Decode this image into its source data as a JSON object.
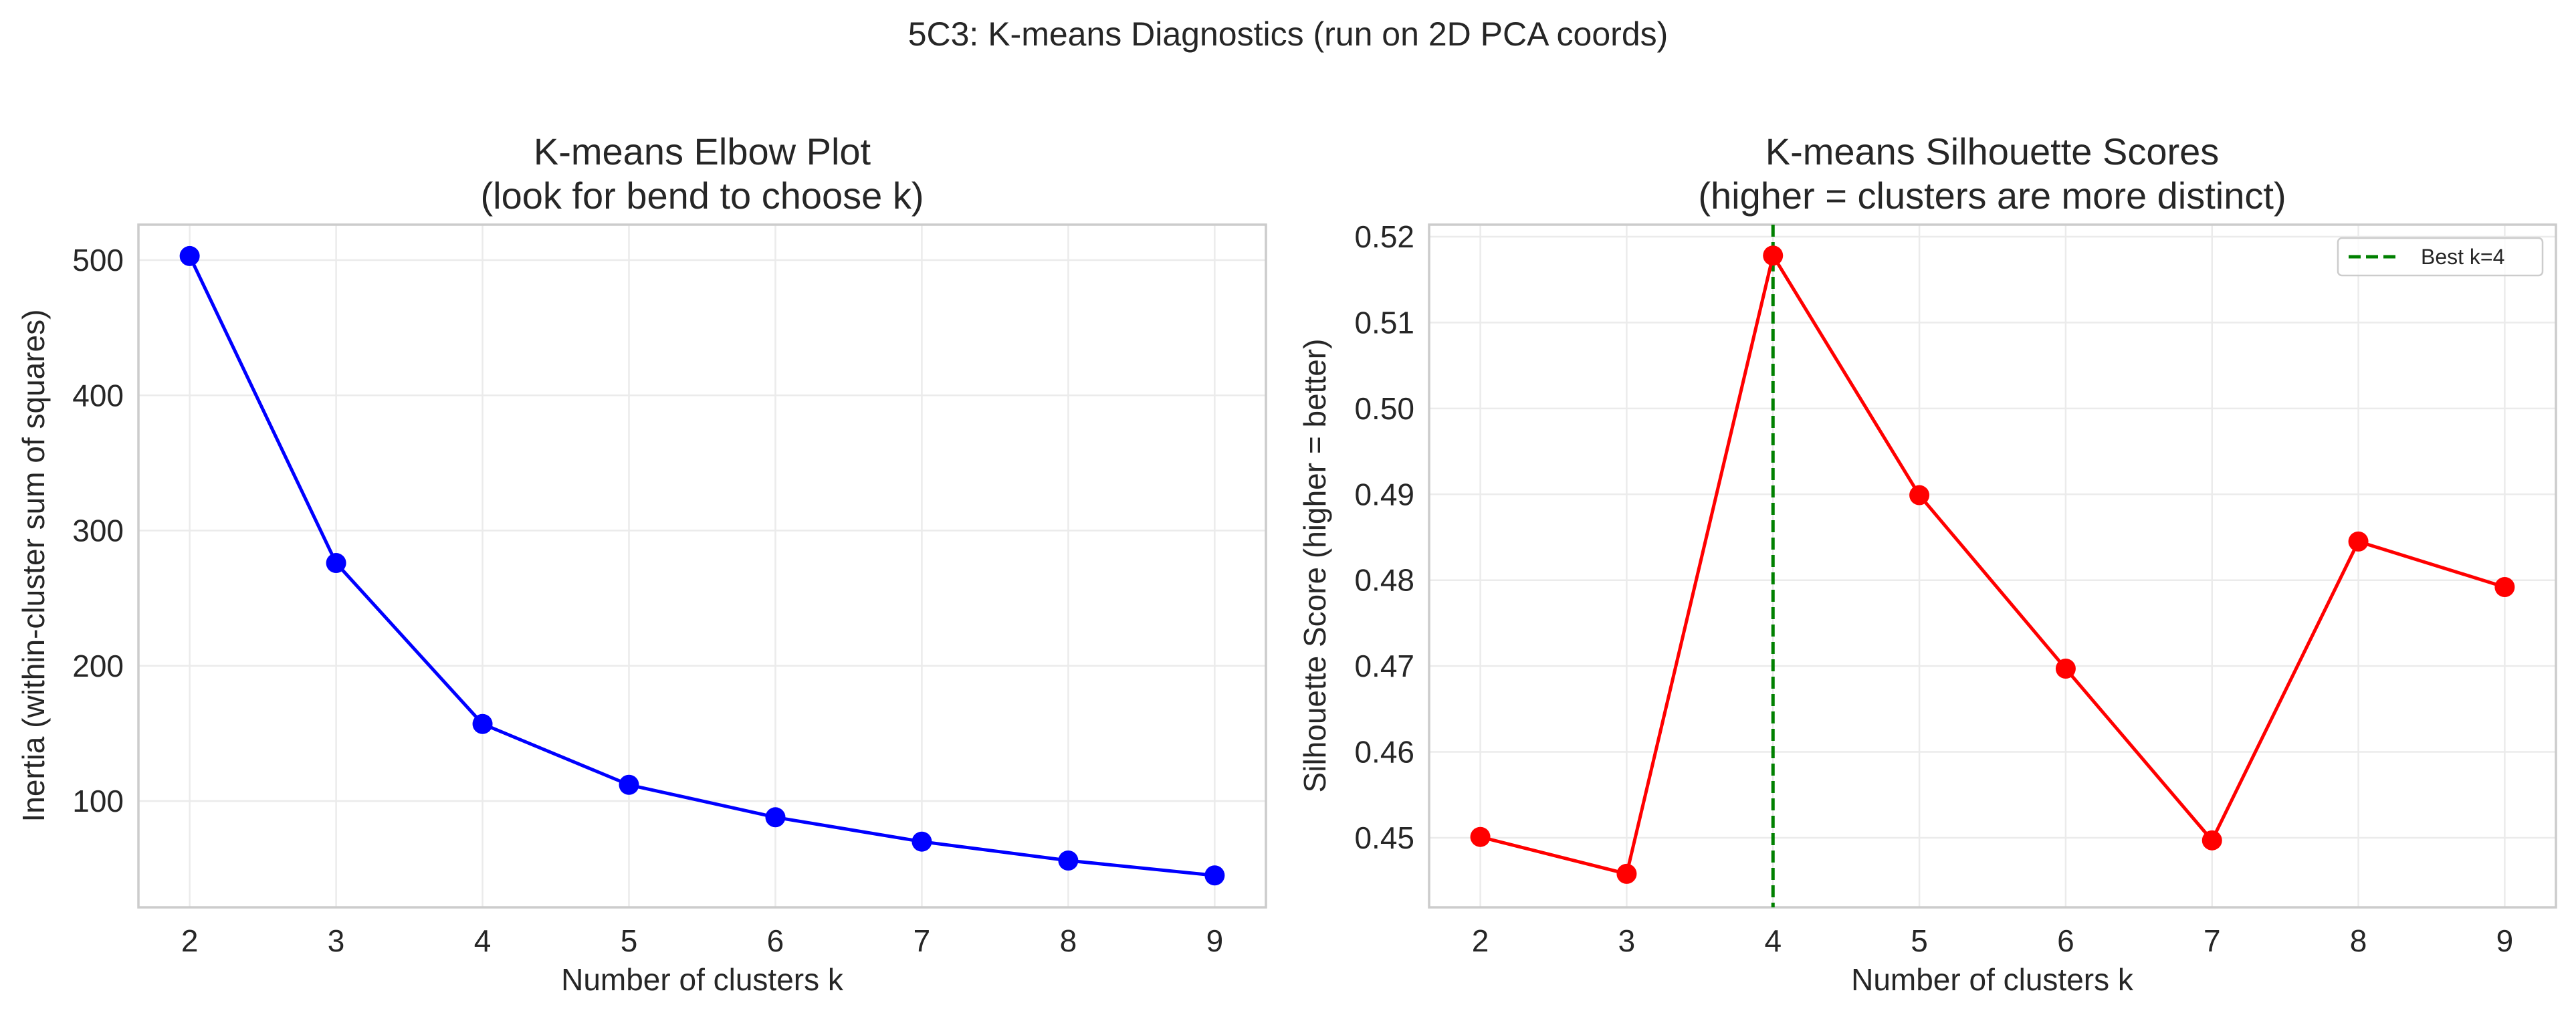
{
  "suptitle": "5C3: K-means Diagnostics (run on 2D PCA coords)",
  "chart_data": [
    {
      "type": "line",
      "title": "K-means Elbow Plot\n(look for bend to choose k)",
      "title_lines": [
        "K-means Elbow Plot",
        "(look for bend to choose k)"
      ],
      "xlabel": "Number of clusters k",
      "ylabel": "Inertia (within-cluster sum of squares)",
      "x": [
        2,
        3,
        4,
        5,
        6,
        7,
        8,
        9
      ],
      "series": [
        {
          "name": "Inertia",
          "color": "#0000ff",
          "marker": "circle",
          "values": [
            503,
            276,
            157,
            112,
            88,
            70,
            56,
            45
          ]
        }
      ],
      "xticks": [
        2,
        3,
        4,
        5,
        6,
        7,
        8,
        9
      ],
      "xtick_labels": [
        "2",
        "3",
        "4",
        "5",
        "6",
        "7",
        "8",
        "9"
      ],
      "yticks": [
        100,
        200,
        300,
        400,
        500
      ],
      "ytick_labels": [
        "100",
        "200",
        "300",
        "400",
        "500"
      ],
      "xlim": [
        1.65,
        9.35
      ],
      "ylim": [
        21.4,
        526.2
      ],
      "grid": true,
      "legend": null
    },
    {
      "type": "line",
      "title": "K-means Silhouette Scores\n(higher = clusters are more distinct)",
      "title_lines": [
        "K-means Silhouette Scores",
        "(higher = clusters are more distinct)"
      ],
      "xlabel": "Number of clusters k",
      "ylabel": "Silhouette Score (higher = better)",
      "x": [
        2,
        3,
        4,
        5,
        6,
        7,
        8,
        9
      ],
      "series": [
        {
          "name": "Silhouette",
          "color": "#ff0000",
          "marker": "circle",
          "values": [
            0.4501,
            0.4458,
            0.5178,
            0.4899,
            0.4697,
            0.4497,
            0.4845,
            0.4792
          ]
        }
      ],
      "annotations": [
        {
          "type": "vline",
          "x": 4,
          "color": "#008000",
          "style": "dashed",
          "label": "Best k=4"
        }
      ],
      "xticks": [
        2,
        3,
        4,
        5,
        6,
        7,
        8,
        9
      ],
      "xtick_labels": [
        "2",
        "3",
        "4",
        "5",
        "6",
        "7",
        "8",
        "9"
      ],
      "yticks": [
        0.45,
        0.46,
        0.47,
        0.48,
        0.49,
        0.5,
        0.51,
        0.52
      ],
      "ytick_labels": [
        "0.45",
        "0.46",
        "0.47",
        "0.48",
        "0.49",
        "0.50",
        "0.51",
        "0.52"
      ],
      "xlim": [
        1.65,
        9.35
      ],
      "ylim": [
        0.4419,
        0.5214
      ],
      "grid": true,
      "legend": {
        "position": "top-right",
        "entries": [
          "Best k=4"
        ]
      }
    }
  ]
}
